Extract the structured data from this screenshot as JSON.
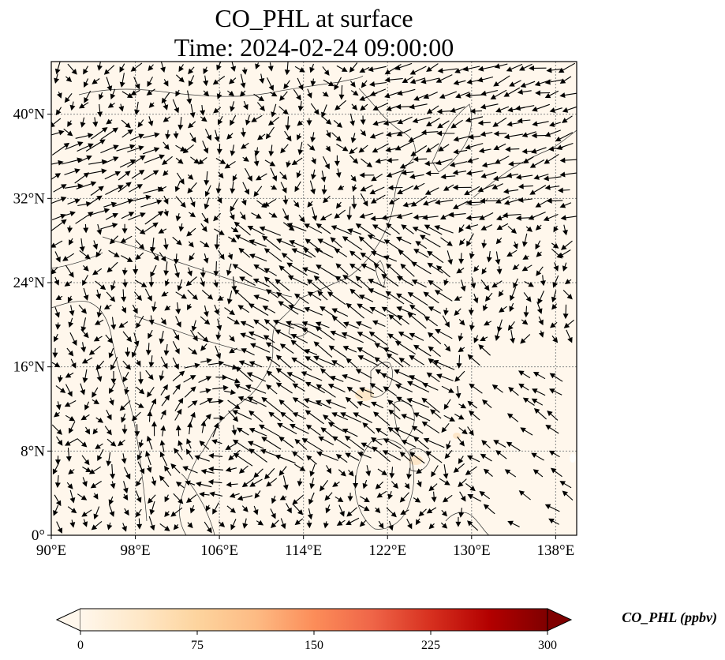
{
  "title": {
    "line1": "CO_PHL at surface",
    "line2": "Time: 2024-02-24 09:00:00"
  },
  "map": {
    "lon_range": [
      90,
      140
    ],
    "lat_range": [
      0,
      45
    ],
    "x_ticks": [
      {
        "value": 90,
        "label": "90°E"
      },
      {
        "value": 98,
        "label": "98°E"
      },
      {
        "value": 106,
        "label": "106°E"
      },
      {
        "value": 114,
        "label": "114°E"
      },
      {
        "value": 122,
        "label": "122°E"
      },
      {
        "value": 130,
        "label": "130°E"
      },
      {
        "value": 138,
        "label": "138°E"
      }
    ],
    "y_ticks": [
      {
        "value": 0,
        "label": "0°"
      },
      {
        "value": 8,
        "label": "8°N"
      },
      {
        "value": 16,
        "label": "16°N"
      },
      {
        "value": 24,
        "label": "24°N"
      },
      {
        "value": 32,
        "label": "32°N"
      },
      {
        "value": 40,
        "label": "40°N"
      }
    ],
    "background_color": "#fff7ec",
    "grid": "dotted",
    "vector_field": "wind"
  },
  "colorbar": {
    "title": "CO_PHL (ppbv)",
    "min": 0,
    "max": 300,
    "ticks": [
      {
        "value": 0,
        "label": "0"
      },
      {
        "value": 75,
        "label": "75"
      },
      {
        "value": 150,
        "label": "150"
      },
      {
        "value": 225,
        "label": "225"
      },
      {
        "value": 300,
        "label": "300"
      }
    ],
    "extend": "both",
    "colors": [
      "#fff7ec",
      "#fee8c8",
      "#fdd49e",
      "#fdbb84",
      "#fc8d59",
      "#ef6548",
      "#d7301f",
      "#b30000",
      "#7f0000"
    ]
  }
}
